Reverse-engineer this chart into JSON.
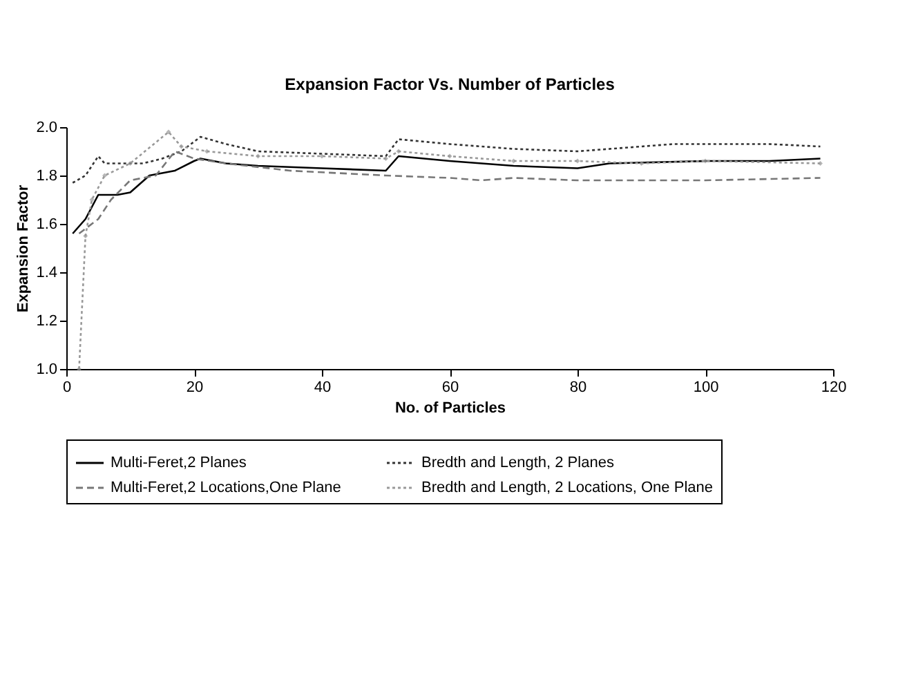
{
  "chart_data": {
    "type": "line",
    "title": "Expansion Factor Vs. Number of Particles",
    "xlabel": "No. of Particles",
    "ylabel": "Expansion Factor",
    "xlim": [
      0,
      120
    ],
    "xticks": [
      0,
      20,
      40,
      60,
      80,
      100,
      120
    ],
    "ylim": [
      1.0,
      2.0
    ],
    "yticks": [
      {
        "value": 1.0,
        "label": "1.0"
      },
      {
        "value": 1.2,
        "label": "1.2"
      },
      {
        "value": 1.4,
        "label": "1.4"
      },
      {
        "value": 1.6,
        "label": "1.6"
      },
      {
        "value": 1.8,
        "label": "1.8"
      },
      {
        "value": 2.0,
        "label": "2.0"
      }
    ],
    "grid": false,
    "legend": "bottom",
    "series": [
      {
        "name": "Multi-Feret,2 Planes",
        "color": "#000000",
        "line_style": "solid",
        "marker": "none",
        "x": [
          1,
          3,
          5,
          8,
          10,
          13,
          17,
          20,
          21,
          25,
          30,
          40,
          50,
          52,
          60,
          70,
          80,
          85,
          100,
          110,
          118
        ],
        "values": [
          1.56,
          1.62,
          1.72,
          1.72,
          1.73,
          1.8,
          1.82,
          1.86,
          1.87,
          1.85,
          1.84,
          1.83,
          1.82,
          1.88,
          1.86,
          1.84,
          1.83,
          1.85,
          1.86,
          1.86,
          1.87
        ]
      },
      {
        "name": "Bredth and Length, 2 Planes",
        "color": "#333333",
        "line_style": "dotted",
        "marker": "none",
        "x": [
          1,
          3,
          5,
          6,
          12,
          15,
          18,
          21,
          25,
          30,
          40,
          50,
          52,
          60,
          70,
          80,
          90,
          95,
          110,
          118
        ],
        "values": [
          1.77,
          1.8,
          1.88,
          1.85,
          1.85,
          1.87,
          1.9,
          1.96,
          1.93,
          1.9,
          1.89,
          1.88,
          1.95,
          1.93,
          1.91,
          1.9,
          1.92,
          1.93,
          1.93,
          1.92
        ]
      },
      {
        "name": "Multi-Feret,2 Locations,One Plane",
        "color": "#777777",
        "line_style": "dashed",
        "marker": "none",
        "x": [
          2,
          5,
          7,
          10,
          14,
          17,
          20,
          25,
          35,
          50,
          60,
          65,
          70,
          80,
          100,
          118
        ],
        "values": [
          1.56,
          1.62,
          1.7,
          1.78,
          1.8,
          1.9,
          1.87,
          1.85,
          1.82,
          1.8,
          1.79,
          1.78,
          1.79,
          1.78,
          1.78,
          1.79
        ]
      },
      {
        "name": "Bredth and Length, 2 Locations, One Plane",
        "color": "#999999",
        "line_style": "dotted",
        "marker": "diamond",
        "x": [
          2,
          3,
          4,
          6,
          10,
          16,
          18,
          22,
          30,
          40,
          50,
          52,
          60,
          70,
          80,
          90,
          100,
          118
        ],
        "values": [
          1.0,
          1.55,
          1.7,
          1.8,
          1.85,
          1.98,
          1.92,
          1.9,
          1.88,
          1.88,
          1.87,
          1.9,
          1.88,
          1.86,
          1.86,
          1.85,
          1.86,
          1.85
        ]
      }
    ]
  }
}
